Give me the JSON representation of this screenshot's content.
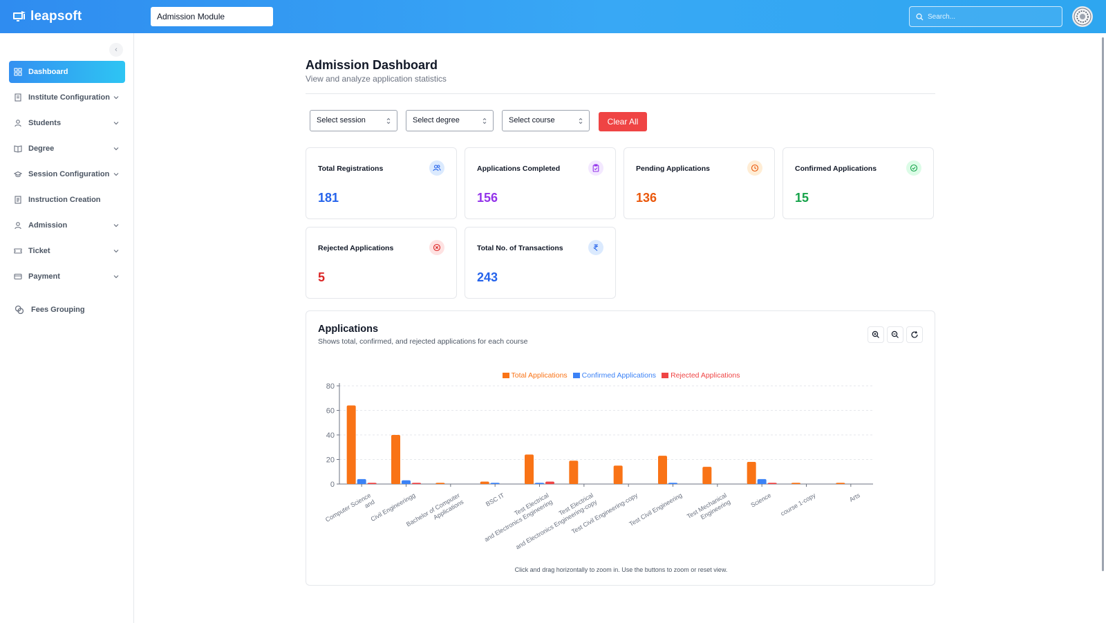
{
  "app": {
    "brand": "leapsoft",
    "module": "Admission Module",
    "search_placeholder": "Search..."
  },
  "sidebar": {
    "collapse_glyph": "‹",
    "items": [
      {
        "label": "Dashboard",
        "icon": "dashboard-icon",
        "active": true,
        "has_chevron": false
      },
      {
        "label": "Institute Configuration",
        "icon": "building-icon",
        "active": false,
        "has_chevron": true
      },
      {
        "label": "Students",
        "icon": "user-icon",
        "active": false,
        "has_chevron": true
      },
      {
        "label": "Degree",
        "icon": "book-icon",
        "active": false,
        "has_chevron": true
      },
      {
        "label": "Session Configuration",
        "icon": "graduation-cap-icon",
        "active": false,
        "has_chevron": true
      },
      {
        "label": "Instruction Creation",
        "icon": "document-icon",
        "active": false,
        "has_chevron": false
      },
      {
        "label": "Admission",
        "icon": "user-icon",
        "active": false,
        "has_chevron": true
      },
      {
        "label": "Ticket",
        "icon": "ticket-icon",
        "active": false,
        "has_chevron": true
      },
      {
        "label": "Payment",
        "icon": "credit-card-icon",
        "active": false,
        "has_chevron": true
      },
      {
        "label": "Fees Grouping",
        "icon": "coins-icon",
        "active": false,
        "has_chevron": false
      }
    ]
  },
  "page": {
    "title": "Admission Dashboard",
    "subtitle": "View and analyze application statistics"
  },
  "filters": {
    "session": "Select session",
    "degree": "Select degree",
    "course": "Select course",
    "clear_label": "Clear All"
  },
  "stats": [
    {
      "label": "Total Registrations",
      "value": "181",
      "color": "#2563eb",
      "icon_bg": "#dbeafe",
      "icon": "users-icon"
    },
    {
      "label": "Applications Completed",
      "value": "156",
      "color": "#9333ea",
      "icon_bg": "#f3e8ff",
      "icon": "clipboard-check-icon"
    },
    {
      "label": "Pending Applications",
      "value": "136",
      "color": "#ea580c",
      "icon_bg": "#ffedd5",
      "icon": "clock-icon"
    },
    {
      "label": "Confirmed Applications",
      "value": "15",
      "color": "#16a34a",
      "icon_bg": "#dcfce7",
      "icon": "check-circle-icon"
    },
    {
      "label": "Rejected Applications",
      "value": "5",
      "color": "#dc2626",
      "icon_bg": "#fee2e2",
      "icon": "x-circle-icon"
    },
    {
      "label": "Total No. of Transactions",
      "value": "243",
      "color": "#2563eb",
      "icon_bg": "#dbeafe",
      "icon": "rupee-icon"
    }
  ],
  "chart_panel": {
    "title": "Applications",
    "subtitle": "Shows total, confirmed, and rejected applications for each course",
    "footnote": "Click and drag horizontally to zoom in. Use the buttons to zoom or reset view.",
    "tools": [
      "zoom-in-icon",
      "zoom-out-icon",
      "reset-icon"
    ]
  },
  "chart_data": {
    "type": "bar",
    "categories": [
      [
        "Computer Science",
        "and"
      ],
      [
        "Civil Engineeringg"
      ],
      [
        "Bachelor of Computer",
        "Applications"
      ],
      [
        "BSC IT"
      ],
      [
        "Test Electrical",
        "and Electronics Engineering"
      ],
      [
        "Test Electrical",
        "and Electronics Engineering-copy"
      ],
      [
        "Test Civil Engineering-copy"
      ],
      [
        "Test Civil Engineering"
      ],
      [
        "Test Mechanical",
        "Engineering"
      ],
      [
        "Science"
      ],
      [
        "course 1-copy"
      ],
      [
        "Arts"
      ]
    ],
    "series": [
      {
        "name": "Total Applications",
        "color": "#f97316",
        "values": [
          64,
          40,
          1,
          2,
          24,
          19,
          15,
          23,
          14,
          18,
          1,
          1
        ]
      },
      {
        "name": "Confirmed Applications",
        "color": "#3b82f6",
        "values": [
          4,
          3,
          0,
          1,
          1,
          0,
          0,
          1,
          0,
          4,
          0,
          0
        ]
      },
      {
        "name": "Rejected Applications",
        "color": "#ef4444",
        "values": [
          1,
          1,
          0,
          0,
          2,
          0,
          0,
          0,
          0,
          1,
          0,
          0
        ]
      }
    ],
    "ylim": [
      0,
      80
    ],
    "yticks": [
      0,
      20,
      40,
      60,
      80
    ],
    "legend": "top-center",
    "grid": true
  }
}
